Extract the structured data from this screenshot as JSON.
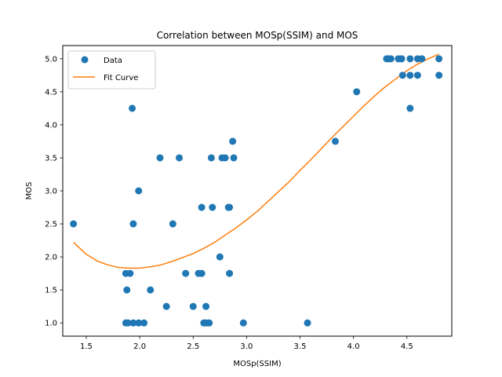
{
  "chart_data": {
    "type": "scatter",
    "title": "Correlation between MOSp(SSIM) and MOS",
    "xlabel": "MOSp(SSIM)",
    "ylabel": "MOS",
    "xlim": [
      1.28,
      4.92
    ],
    "ylim": [
      0.8,
      5.2
    ],
    "xticks": [
      "1.5",
      "2.0",
      "2.5",
      "3.0",
      "3.5",
      "4.0",
      "4.5"
    ],
    "yticks": [
      "1.0",
      "1.5",
      "2.0",
      "2.5",
      "3.0",
      "3.5",
      "4.0",
      "4.5",
      "5.0"
    ],
    "grid": false,
    "legend_position": "top-left",
    "series": [
      {
        "name": "Data",
        "kind": "scatter",
        "color": "#1f77b4",
        "points": [
          [
            1.38,
            2.5
          ],
          [
            1.87,
            1.0
          ],
          [
            1.89,
            1.0
          ],
          [
            1.94,
            1.0
          ],
          [
            1.99,
            1.0
          ],
          [
            2.04,
            1.0
          ],
          [
            1.87,
            1.75
          ],
          [
            1.91,
            1.75
          ],
          [
            1.88,
            1.5
          ],
          [
            1.93,
            4.25
          ],
          [
            1.94,
            2.5
          ],
          [
            1.99,
            3.0
          ],
          [
            2.1,
            1.5
          ],
          [
            2.19,
            3.5
          ],
          [
            2.25,
            1.25
          ],
          [
            2.31,
            2.5
          ],
          [
            2.37,
            3.5
          ],
          [
            2.43,
            1.75
          ],
          [
            2.5,
            1.25
          ],
          [
            2.55,
            1.75
          ],
          [
            2.58,
            1.75
          ],
          [
            2.58,
            2.75
          ],
          [
            2.6,
            1.0
          ],
          [
            2.62,
            1.25
          ],
          [
            2.62,
            1.0
          ],
          [
            2.65,
            1.0
          ],
          [
            2.67,
            3.5
          ],
          [
            2.68,
            2.75
          ],
          [
            2.75,
            2.0
          ],
          [
            2.77,
            3.5
          ],
          [
            2.8,
            3.5
          ],
          [
            2.83,
            2.75
          ],
          [
            2.84,
            2.75
          ],
          [
            2.84,
            1.75
          ],
          [
            2.87,
            3.75
          ],
          [
            2.88,
            3.5
          ],
          [
            2.97,
            1.0
          ],
          [
            3.57,
            1.0
          ],
          [
            3.83,
            3.75
          ],
          [
            4.03,
            4.5
          ],
          [
            4.31,
            5.0
          ],
          [
            4.33,
            5.0
          ],
          [
            4.35,
            5.0
          ],
          [
            4.42,
            5.0
          ],
          [
            4.45,
            5.0
          ],
          [
            4.46,
            4.75
          ],
          [
            4.45,
            5.0
          ],
          [
            4.53,
            5.0
          ],
          [
            4.53,
            4.75
          ],
          [
            4.53,
            4.25
          ],
          [
            4.6,
            5.0
          ],
          [
            4.6,
            4.75
          ],
          [
            4.64,
            5.0
          ],
          [
            4.8,
            5.0
          ],
          [
            4.8,
            4.75
          ]
        ]
      },
      {
        "name": "Fit Curve",
        "kind": "line",
        "color": "#ff7f0e",
        "points": [
          [
            1.38,
            2.22
          ],
          [
            1.5,
            2.04
          ],
          [
            1.6,
            1.94
          ],
          [
            1.7,
            1.88
          ],
          [
            1.8,
            1.84
          ],
          [
            1.9,
            1.83
          ],
          [
            2.0,
            1.83
          ],
          [
            2.1,
            1.85
          ],
          [
            2.2,
            1.88
          ],
          [
            2.3,
            1.93
          ],
          [
            2.4,
            1.99
          ],
          [
            2.5,
            2.05
          ],
          [
            2.6,
            2.13
          ],
          [
            2.7,
            2.22
          ],
          [
            2.8,
            2.33
          ],
          [
            2.9,
            2.44
          ],
          [
            3.0,
            2.56
          ],
          [
            3.1,
            2.69
          ],
          [
            3.2,
            2.84
          ],
          [
            3.3,
            2.99
          ],
          [
            3.4,
            3.14
          ],
          [
            3.5,
            3.31
          ],
          [
            3.6,
            3.47
          ],
          [
            3.7,
            3.64
          ],
          [
            3.8,
            3.81
          ],
          [
            3.9,
            3.97
          ],
          [
            4.0,
            4.13
          ],
          [
            4.1,
            4.29
          ],
          [
            4.2,
            4.44
          ],
          [
            4.3,
            4.58
          ],
          [
            4.4,
            4.7
          ],
          [
            4.5,
            4.82
          ],
          [
            4.6,
            4.92
          ],
          [
            4.7,
            5.0
          ],
          [
            4.8,
            5.07
          ]
        ]
      }
    ]
  }
}
